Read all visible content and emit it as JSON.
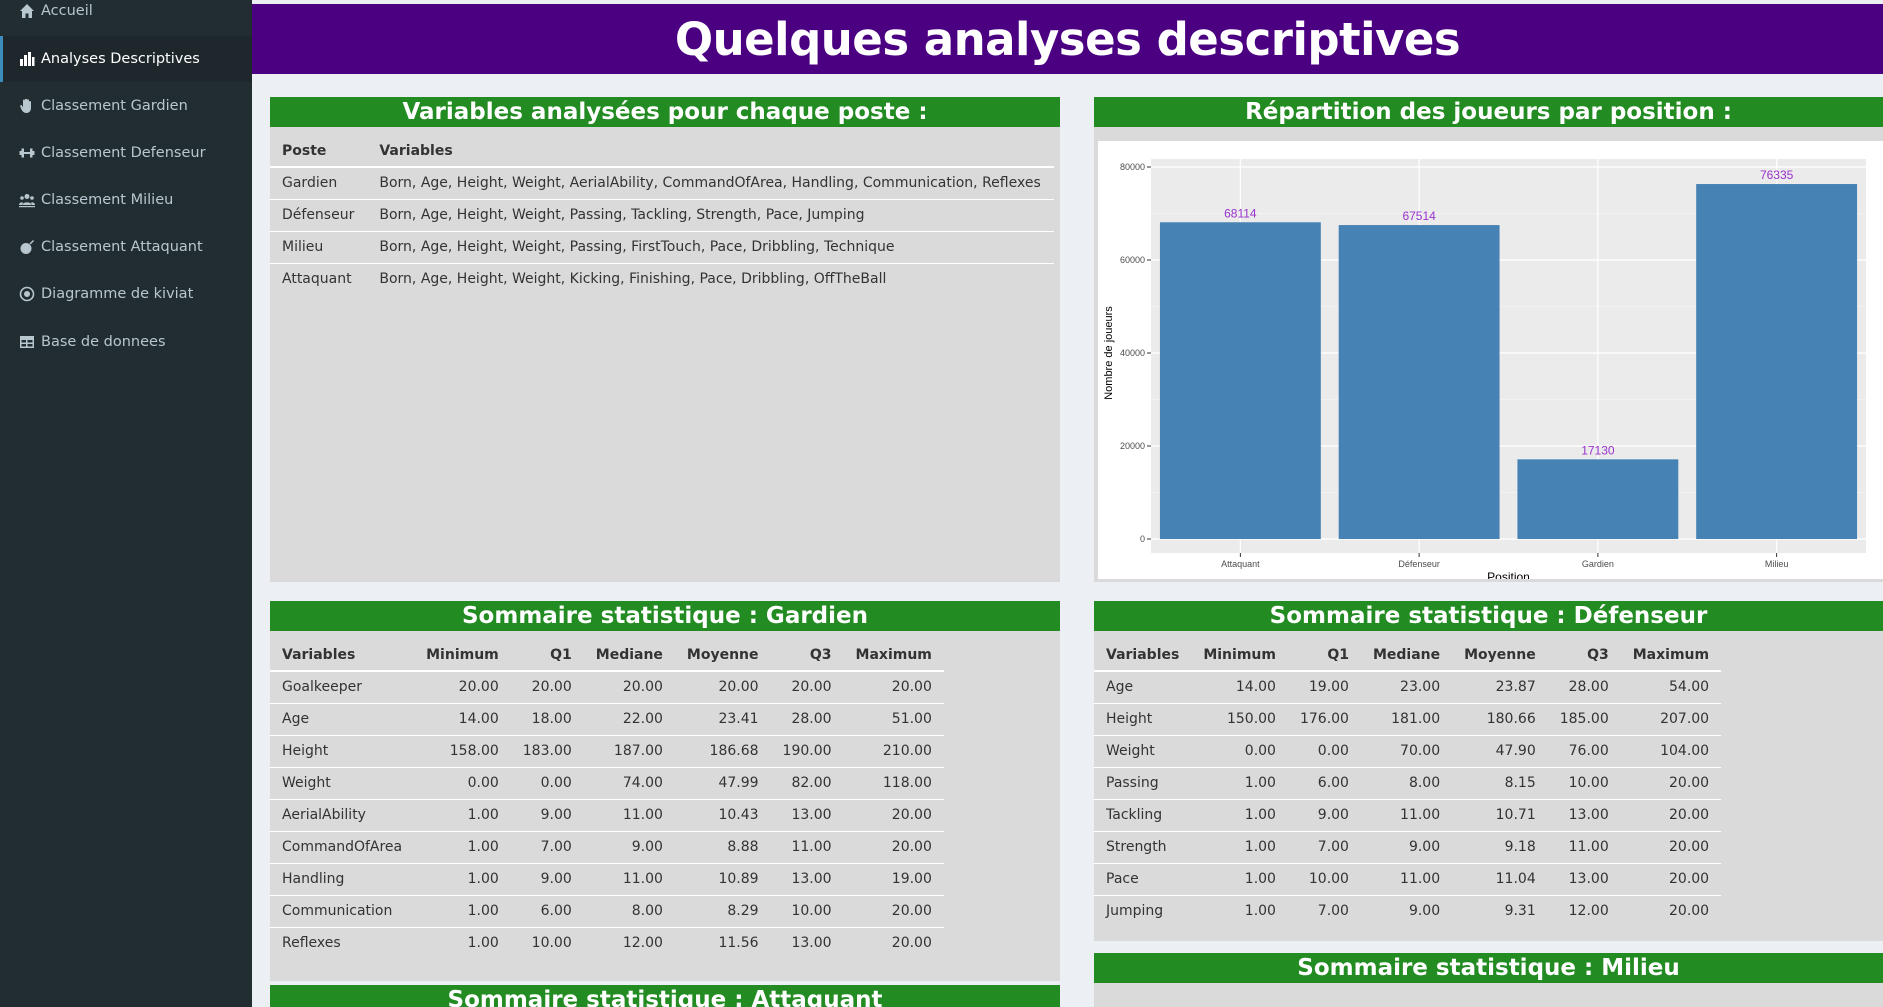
{
  "sidebar": {
    "items": [
      {
        "label": "Accueil",
        "icon": "home-icon",
        "active": false
      },
      {
        "label": "Analyses Descriptives",
        "icon": "bar-chart-icon",
        "active": true
      },
      {
        "label": "Classement Gardien",
        "icon": "hand-icon",
        "active": false
      },
      {
        "label": "Classement Defenseur",
        "icon": "dumbbell-icon",
        "active": false
      },
      {
        "label": "Classement Milieu",
        "icon": "users-icon",
        "active": false
      },
      {
        "label": "Classement Attaquant",
        "icon": "ball-icon",
        "active": false
      },
      {
        "label": "Diagramme de kiviat",
        "icon": "target-icon",
        "active": false
      },
      {
        "label": "Base de donnees",
        "icon": "table-icon",
        "active": false
      }
    ]
  },
  "header": {
    "title": "Quelques analyses descriptives"
  },
  "variables_box": {
    "title": "Variables analysées pour chaque poste :",
    "headers": [
      "Poste",
      "Variables"
    ],
    "rows": [
      [
        "Gardien",
        "Born, Age, Height, Weight, AerialAbility, CommandOfArea, Handling, Communication, Reflexes"
      ],
      [
        "Défenseur",
        "Born, Age, Height, Weight, Passing, Tackling, Strength, Pace, Jumping"
      ],
      [
        "Milieu",
        "Born, Age, Height, Weight, Passing, FirstTouch, Pace, Dribbling, Technique"
      ],
      [
        "Attaquant",
        "Born, Age, Height, Weight, Kicking, Finishing, Pace, Dribbling, OffTheBall"
      ]
    ]
  },
  "repartition_box": {
    "title": "Répartition des joueurs par position :"
  },
  "chart_data": {
    "type": "bar",
    "categories": [
      "Attaquant",
      "Défenseur",
      "Gardien",
      "Milieu"
    ],
    "values": [
      68114,
      67514,
      17130,
      76335
    ],
    "xlabel": "Position",
    "ylabel": "Nombre de joueurs",
    "ylim": [
      0,
      80000
    ],
    "yticks": [
      "0",
      "20000",
      "40000",
      "60000",
      "80000"
    ],
    "grid": true,
    "bar_color": "#4682b4",
    "label_color": "#9932cc"
  },
  "gardien_box": {
    "title": "Sommaire statistique : Gardien",
    "headers": [
      "Variables",
      "Minimum",
      "Q1",
      "Mediane",
      "Moyenne",
      "Q3",
      "Maximum"
    ],
    "rows": [
      [
        "Goalkeeper",
        "20.00",
        "20.00",
        "20.00",
        "20.00",
        "20.00",
        "20.00"
      ],
      [
        "Age",
        "14.00",
        "18.00",
        "22.00",
        "23.41",
        "28.00",
        "51.00"
      ],
      [
        "Height",
        "158.00",
        "183.00",
        "187.00",
        "186.68",
        "190.00",
        "210.00"
      ],
      [
        "Weight",
        "0.00",
        "0.00",
        "74.00",
        "47.99",
        "82.00",
        "118.00"
      ],
      [
        "AerialAbility",
        "1.00",
        "9.00",
        "11.00",
        "10.43",
        "13.00",
        "20.00"
      ],
      [
        "CommandOfArea",
        "1.00",
        "7.00",
        "9.00",
        "8.88",
        "11.00",
        "20.00"
      ],
      [
        "Handling",
        "1.00",
        "9.00",
        "11.00",
        "10.89",
        "13.00",
        "19.00"
      ],
      [
        "Communication",
        "1.00",
        "6.00",
        "8.00",
        "8.29",
        "10.00",
        "20.00"
      ],
      [
        "Reflexes",
        "1.00",
        "10.00",
        "12.00",
        "11.56",
        "13.00",
        "20.00"
      ]
    ]
  },
  "defenseur_box": {
    "title": "Sommaire statistique : Défenseur",
    "headers": [
      "Variables",
      "Minimum",
      "Q1",
      "Mediane",
      "Moyenne",
      "Q3",
      "Maximum"
    ],
    "rows": [
      [
        "Age",
        "14.00",
        "19.00",
        "23.00",
        "23.87",
        "28.00",
        "54.00"
      ],
      [
        "Height",
        "150.00",
        "176.00",
        "181.00",
        "180.66",
        "185.00",
        "207.00"
      ],
      [
        "Weight",
        "0.00",
        "0.00",
        "70.00",
        "47.90",
        "76.00",
        "104.00"
      ],
      [
        "Passing",
        "1.00",
        "6.00",
        "8.00",
        "8.15",
        "10.00",
        "20.00"
      ],
      [
        "Tackling",
        "1.00",
        "9.00",
        "11.00",
        "10.71",
        "13.00",
        "20.00"
      ],
      [
        "Strength",
        "1.00",
        "7.00",
        "9.00",
        "9.18",
        "11.00",
        "20.00"
      ],
      [
        "Pace",
        "1.00",
        "10.00",
        "11.00",
        "11.04",
        "13.00",
        "20.00"
      ],
      [
        "Jumping",
        "1.00",
        "7.00",
        "9.00",
        "9.31",
        "12.00",
        "20.00"
      ]
    ]
  },
  "milieu_box": {
    "title": "Sommaire statistique : Milieu"
  },
  "attaquant_box": {
    "title": "Sommaire statistique : Attaquant"
  }
}
